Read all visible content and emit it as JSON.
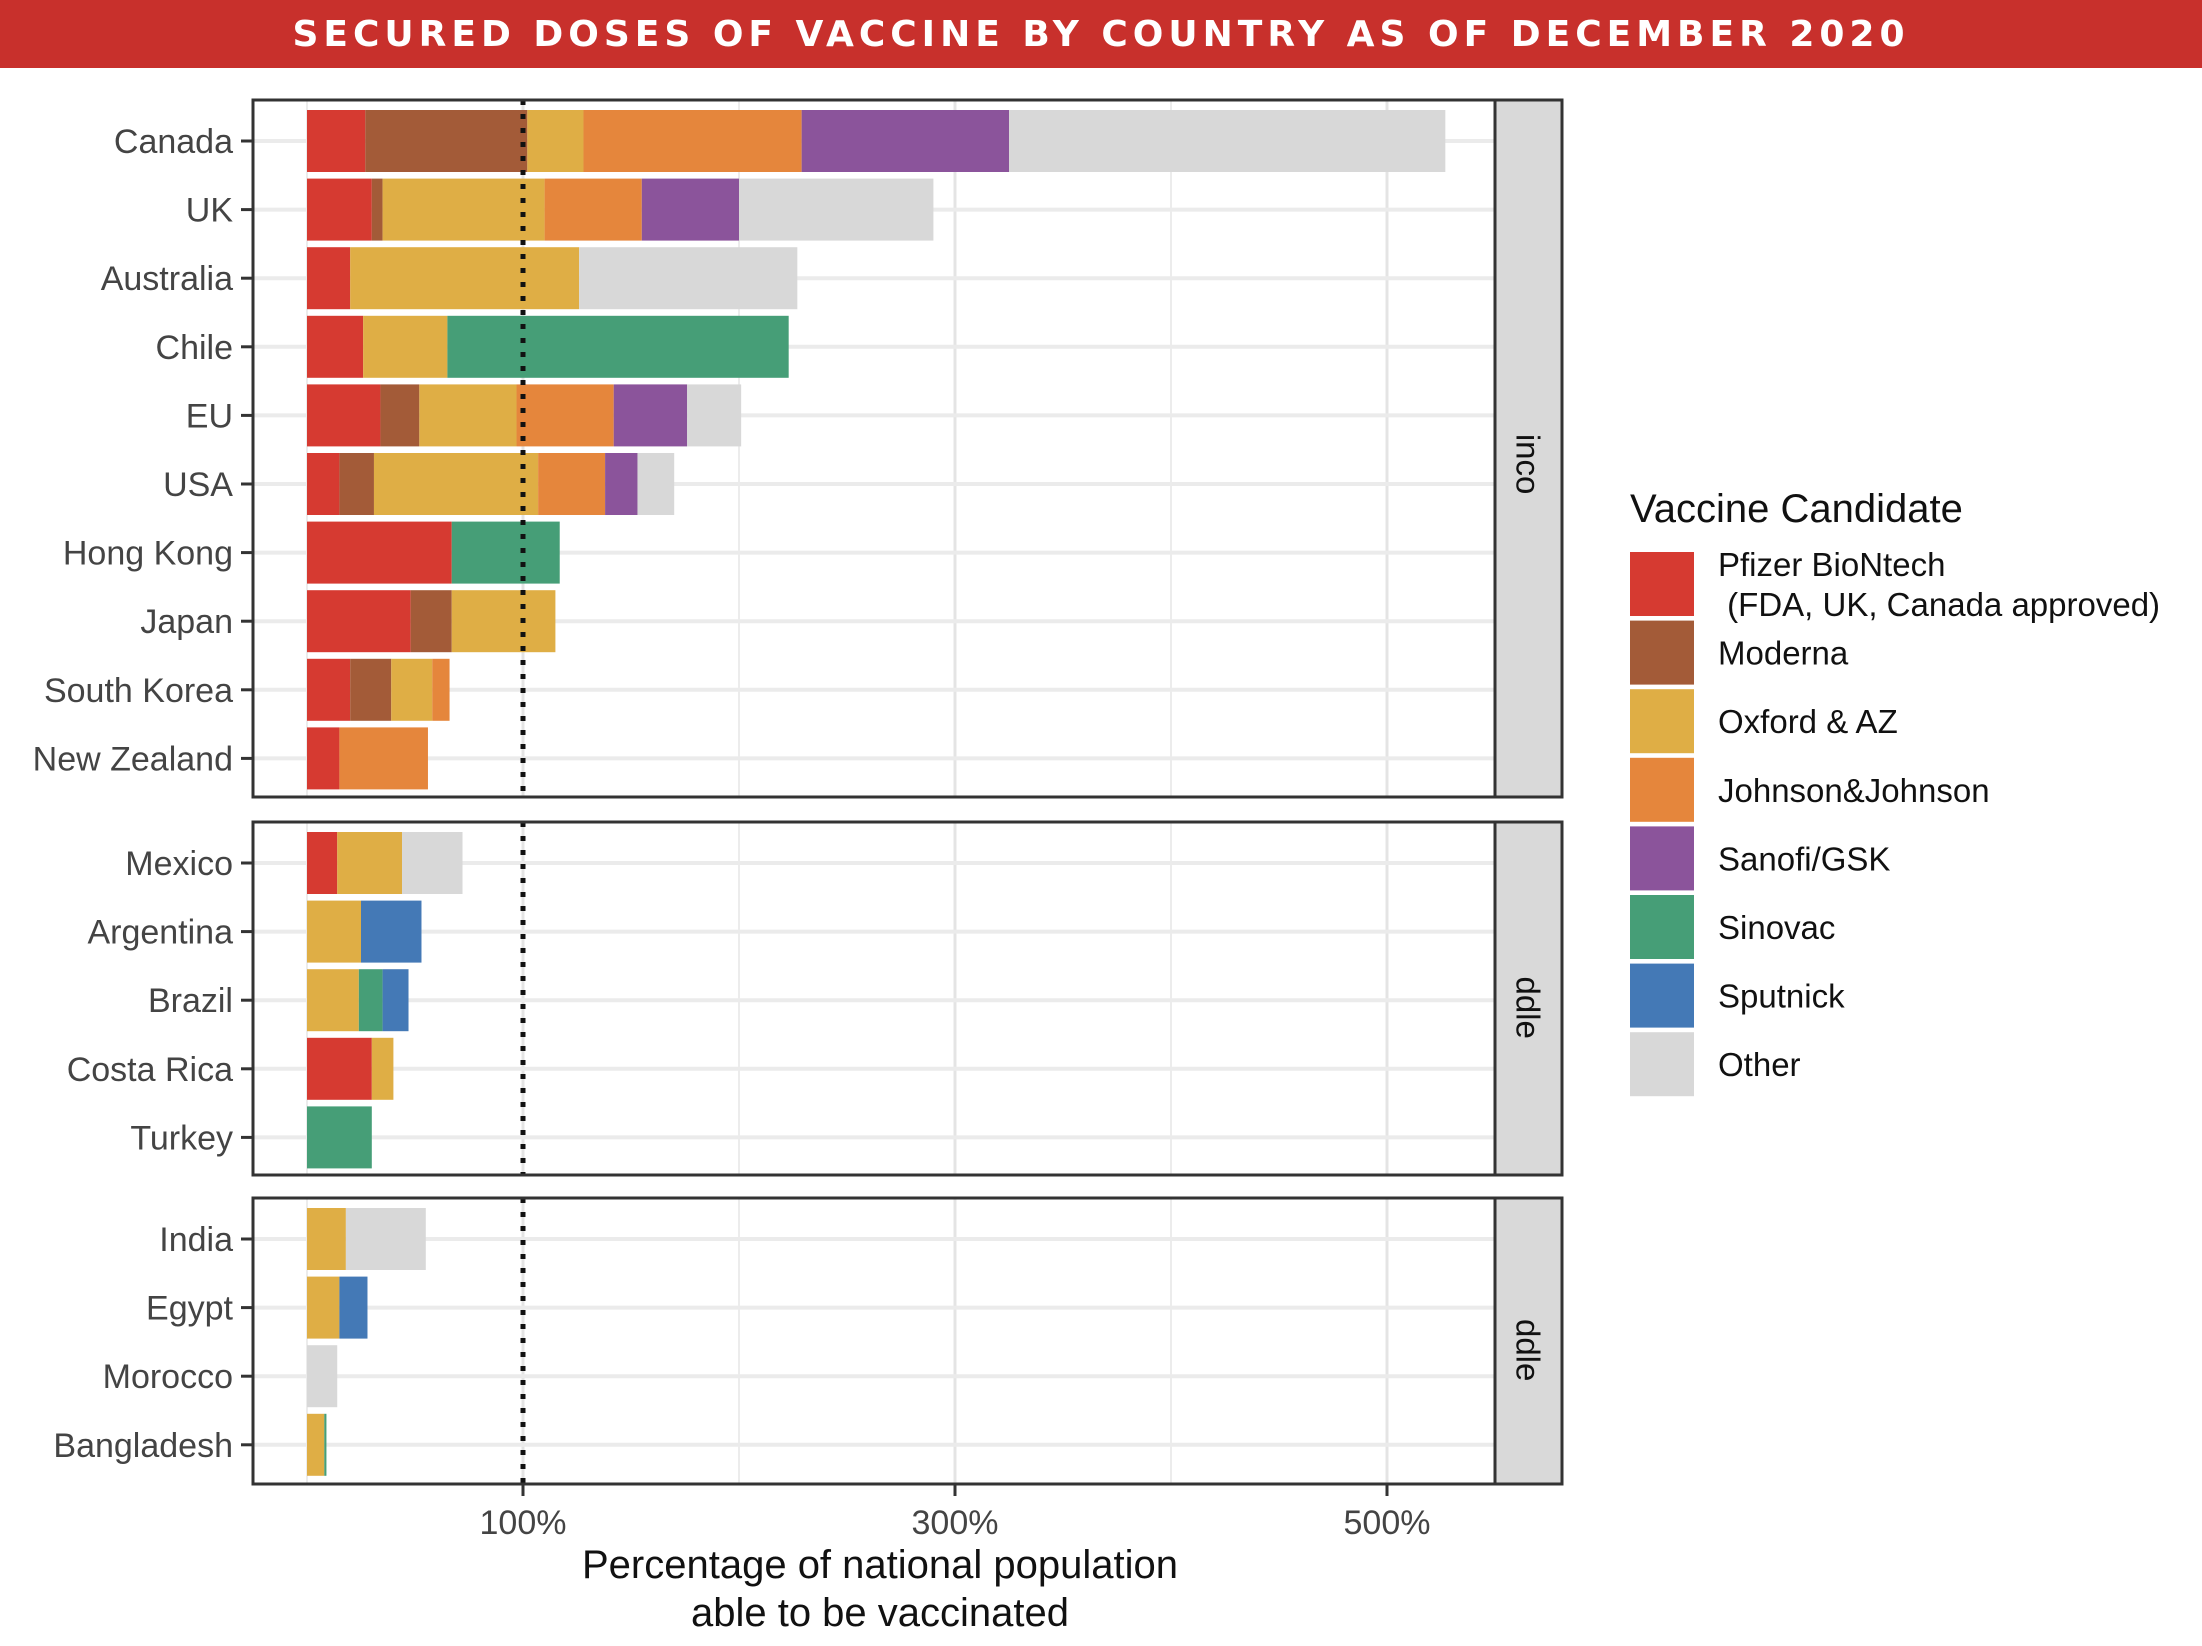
{
  "title": "SECURED DOSES OF VACCINE BY COUNTRY AS OF DECEMBER 2020",
  "chart_data": {
    "type": "bar",
    "orientation": "horizontal",
    "stacked": true,
    "title": "SECURED DOSES OF VACCINE BY COUNTRY AS OF DECEMBER 2020",
    "xlabel": "Percentage of national population\nable to be vaccinated",
    "ylabel": "",
    "xlim": [
      -25,
      550
    ],
    "x_ticks": [
      100,
      300,
      500
    ],
    "x_tick_labels": [
      "100%",
      "300%",
      "500%"
    ],
    "reference_line": {
      "x": 100,
      "style": "dotted"
    },
    "grid": true,
    "legend": {
      "title": "Vaccine Candidate",
      "position": "right",
      "entries": [
        "Pfizer BioNtech\n (FDA, UK, Canada approved)",
        "Moderna",
        "Oxford & AZ",
        "Johnson&Johnson",
        "Sanofi/GSK",
        "Sinovac",
        "Sputnick",
        "Other"
      ]
    },
    "series_colors": [
      "#d63a31",
      "#a35b38",
      "#dfae45",
      "#e5863c",
      "#8b549b",
      "#469e77",
      "#4479b6",
      "#d8d8d8"
    ],
    "facets": [
      {
        "label": "High income",
        "countries": [
          {
            "name": "Canada",
            "values": [
              27,
              75,
              26,
              101,
              96,
              0,
              0,
              202
            ]
          },
          {
            "name": "UK",
            "values": [
              30,
              5,
              75,
              45,
              45,
              0,
              0,
              90
            ]
          },
          {
            "name": "Australia",
            "values": [
              20,
              0,
              106,
              0,
              0,
              0,
              0,
              101
            ]
          },
          {
            "name": "Chile",
            "values": [
              26,
              0,
              39,
              0,
              0,
              158,
              0,
              0
            ]
          },
          {
            "name": "EU",
            "values": [
              34,
              18,
              45,
              45,
              34,
              0,
              0,
              25
            ]
          },
          {
            "name": "USA",
            "values": [
              15,
              16,
              76,
              31,
              15,
              0,
              0,
              17
            ]
          },
          {
            "name": "Hong Kong",
            "values": [
              67,
              0,
              0,
              0,
              0,
              50,
              0,
              0
            ]
          },
          {
            "name": "Japan",
            "values": [
              48,
              19,
              48,
              0,
              0,
              0,
              0,
              0
            ]
          },
          {
            "name": "South Korea",
            "values": [
              20,
              19,
              19,
              8,
              0,
              0,
              0,
              0
            ]
          },
          {
            "name": "New Zealand",
            "values": [
              15,
              0,
              0,
              41,
              0,
              0,
              0,
              0
            ]
          }
        ]
      },
      {
        "label": "Upper middle income",
        "countries": [
          {
            "name": "Mexico",
            "values": [
              14,
              0,
              30,
              0,
              0,
              0,
              0,
              28
            ]
          },
          {
            "name": "Argentina",
            "values": [
              0,
              0,
              25,
              0,
              0,
              0,
              28,
              0
            ]
          },
          {
            "name": "Brazil",
            "values": [
              0,
              0,
              24,
              0,
              0,
              11,
              12,
              0
            ]
          },
          {
            "name": "Costa Rica",
            "values": [
              30,
              0,
              10,
              0,
              0,
              0,
              0,
              0
            ]
          },
          {
            "name": "Turkey",
            "values": [
              0,
              0,
              0,
              0,
              0,
              30,
              0,
              0
            ]
          }
        ]
      },
      {
        "label": "Lower middle income",
        "countries": [
          {
            "name": "India",
            "values": [
              0,
              0,
              18,
              0,
              0,
              0,
              0,
              37
            ]
          },
          {
            "name": "Egypt",
            "values": [
              0,
              0,
              15,
              0,
              0,
              0,
              13,
              0
            ]
          },
          {
            "name": "Morocco",
            "values": [
              0,
              0,
              0,
              0,
              0,
              0,
              0,
              14
            ]
          },
          {
            "name": "Bangladesh",
            "values": [
              0,
              0,
              8,
              0,
              0,
              1,
              0,
              0
            ]
          }
        ]
      }
    ]
  }
}
